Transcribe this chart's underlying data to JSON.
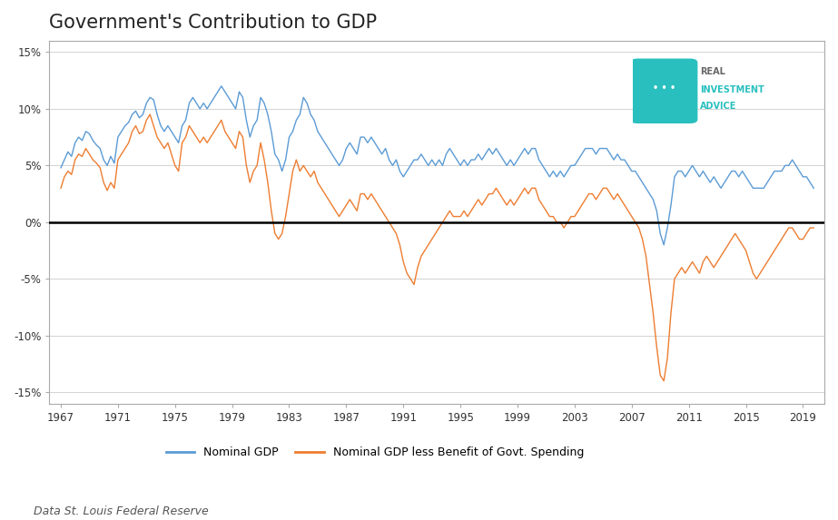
{
  "title": "Government's Contribution to GDP",
  "subtitle": "Data St. Louis Federal Reserve",
  "line1_label": "Nominal GDP",
  "line2_label": "Nominal GDP less Benefit of Govt. Spending",
  "line1_color": "#5b9bd5",
  "line2_color": "#ed7d31",
  "zero_line_color": "#000000",
  "background_color": "#ffffff",
  "grid_color": "#cccccc",
  "ylim": [
    -16,
    16
  ],
  "yticks": [
    -15,
    -10,
    -5,
    0,
    5,
    10,
    15
  ],
  "ytick_labels": [
    "-15%",
    "-10%",
    "-5%",
    "0%",
    "5%",
    "10%",
    "15%"
  ],
  "xtick_labels": [
    "1967",
    "1971",
    "1975",
    "1979",
    "1983",
    "1987",
    "1991",
    "1995",
    "1999",
    "2003",
    "2007",
    "2011",
    "2015",
    "2019"
  ],
  "logo_color": "#2abfbf",
  "logo_text1": "REAL",
  "logo_text2": "INVESTMENT",
  "logo_text3": "ADVICE"
}
